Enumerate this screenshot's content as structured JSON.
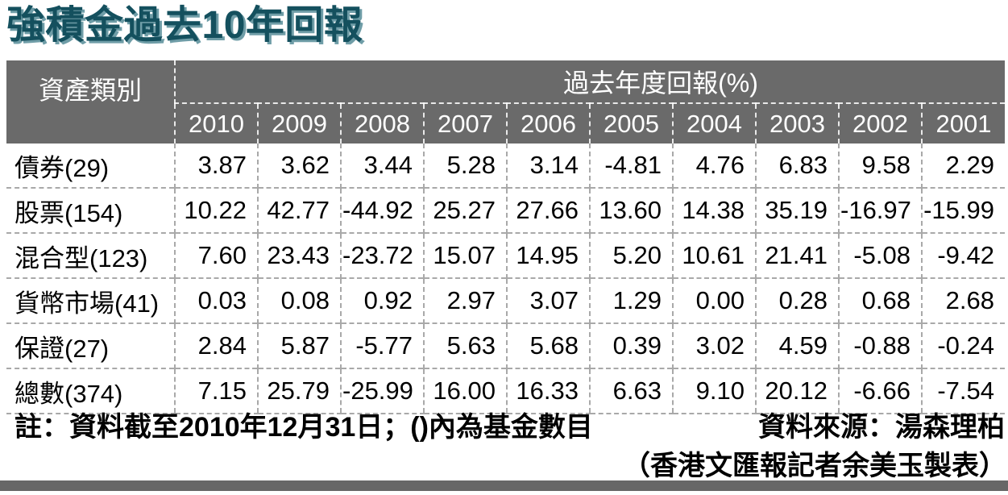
{
  "page": {
    "footer": {
      "note": "註：資料截至2010年12月31日；()內為基金數目",
      "source": "資料來源：湯森理柏",
      "credit": "（香港文匯報記者余美玉製表）"
    }
  },
  "colors": {
    "title_text": "#14505e",
    "title_shadow": "#6f9da7",
    "header_bg": "#6a6a6a",
    "header_text": "#ffffff",
    "body_text": "#000000",
    "divider": "#a9a9a9",
    "bottom_bar": "#676767"
  },
  "chart_data": {
    "type": "table",
    "title": "強積金過去10年回報",
    "row_header_label": "資產類別",
    "column_group_label": "過去年度回報(%)",
    "columns": [
      "2010",
      "2009",
      "2008",
      "2007",
      "2006",
      "2005",
      "2004",
      "2003",
      "2002",
      "2001"
    ],
    "series": [
      {
        "name": "債券(29)",
        "values": [
          3.87,
          3.62,
          3.44,
          5.28,
          3.14,
          -4.81,
          4.76,
          6.83,
          9.58,
          2.29
        ]
      },
      {
        "name": "股票(154)",
        "values": [
          10.22,
          42.77,
          -44.92,
          25.27,
          27.66,
          13.6,
          14.38,
          35.19,
          -16.97,
          -15.99
        ]
      },
      {
        "name": "混合型(123)",
        "values": [
          7.6,
          23.43,
          -23.72,
          15.07,
          14.95,
          5.2,
          10.61,
          21.41,
          -5.08,
          -9.42
        ]
      },
      {
        "name": "貨幣市場(41)",
        "values": [
          0.03,
          0.08,
          0.92,
          2.97,
          3.07,
          1.29,
          0.0,
          0.28,
          0.68,
          2.68
        ]
      },
      {
        "name": "保證(27)",
        "values": [
          2.84,
          5.87,
          -5.77,
          5.63,
          5.68,
          0.39,
          3.02,
          4.59,
          -0.88,
          -0.24
        ]
      },
      {
        "name": "總數(374)",
        "values": [
          7.15,
          25.79,
          -25.99,
          16.0,
          16.33,
          6.63,
          9.1,
          20.12,
          -6.66,
          -7.54
        ]
      }
    ],
    "value_format": "two-decimals",
    "layout": {
      "grid": "dashed",
      "legend": "none"
    }
  }
}
